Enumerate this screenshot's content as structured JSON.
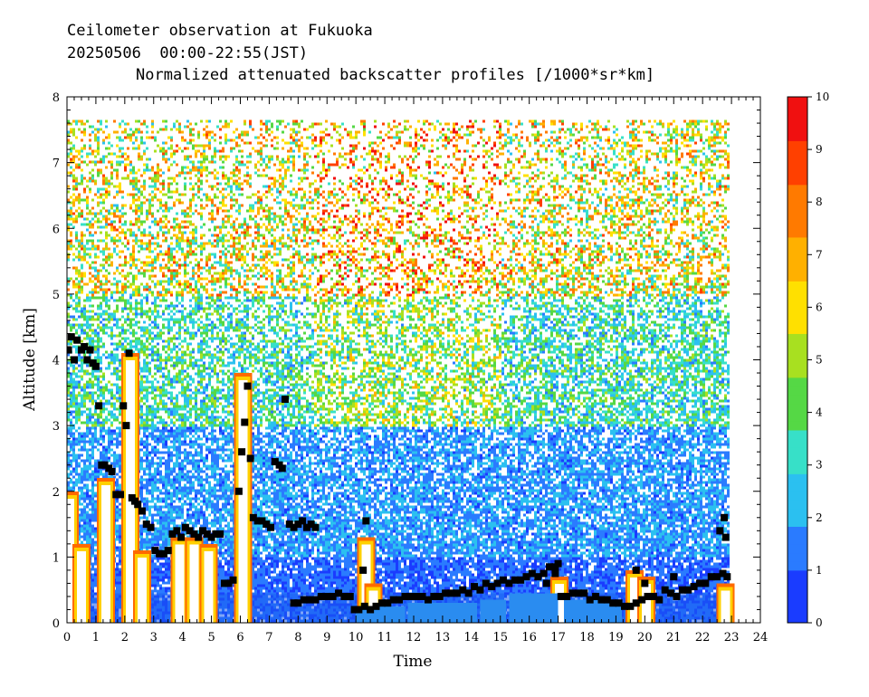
{
  "chart_data": {
    "type": "heatmap",
    "title_lines": [
      "Ceilometer observation at Fukuoka",
      "20250506  00:00-22:55(JST)"
    ],
    "subtitle": "Normalized attenuated backscatter profiles [/1000*sr*km]",
    "xlabel": "Time",
    "ylabel": "Altitude [km]",
    "xlim": [
      0,
      24
    ],
    "ylim": [
      0,
      8
    ],
    "x_ticks": [
      "0",
      "1",
      "2",
      "3",
      "4",
      "5",
      "6",
      "7",
      "8",
      "9",
      "10",
      "11",
      "12",
      "13",
      "14",
      "15",
      "16",
      "17",
      "18",
      "19",
      "20",
      "21",
      "22",
      "23",
      "24"
    ],
    "y_ticks": [
      "0",
      "1",
      "2",
      "3",
      "4",
      "5",
      "6",
      "7",
      "8"
    ],
    "colorbar": {
      "range": [
        0,
        10
      ],
      "ticks": [
        "0",
        "1",
        "2",
        "3",
        "4",
        "5",
        "6",
        "7",
        "8",
        "9",
        "10"
      ],
      "colors": [
        "#1a3cff",
        "#2a7bff",
        "#2bc0f0",
        "#37e0c8",
        "#55d845",
        "#a8e020",
        "#ffe000",
        "#ffb000",
        "#ff7a00",
        "#ff4000",
        "#f01010"
      ]
    },
    "data_top_altitude": 7.65,
    "data_end_time": 22.92,
    "series": [
      {
        "name": "cloud base / layer height",
        "x": [
          0.05,
          0.15,
          0.25,
          0.35,
          0.5,
          0.6,
          0.7,
          0.8,
          0.9,
          1.0,
          1.1,
          1.2,
          1.3,
          1.45,
          1.55,
          1.7,
          1.85,
          1.95,
          2.05,
          2.15,
          2.25,
          2.35,
          2.45,
          2.6,
          2.75,
          2.9,
          3.05,
          3.2,
          3.35,
          3.5,
          3.65,
          3.8,
          3.95,
          4.1,
          4.25,
          4.4,
          4.55,
          4.7,
          4.85,
          5.0,
          5.15,
          5.3,
          5.45,
          5.6,
          5.75,
          5.95,
          6.05,
          6.15,
          6.25,
          6.35,
          6.45,
          6.6,
          6.75,
          6.9,
          7.05,
          7.2,
          7.35,
          7.45,
          7.55,
          7.7,
          7.85,
          8.0,
          8.15,
          8.3,
          8.45,
          8.6,
          7.85,
          8.0,
          8.2,
          8.4,
          8.6,
          8.8,
          9.0,
          9.2,
          9.4,
          9.6,
          9.8,
          9.95,
          10.1,
          10.3,
          10.5,
          10.7,
          10.9,
          11.1,
          11.3,
          11.5,
          11.7,
          11.9,
          12.1,
          12.3,
          12.5,
          12.7,
          12.9,
          13.1,
          13.3,
          13.5,
          13.7,
          13.9,
          14.1,
          14.3,
          14.5,
          14.7,
          14.9,
          15.1,
          15.3,
          15.5,
          15.7,
          15.9,
          16.1,
          16.3,
          16.5,
          16.7,
          16.9,
          17.1,
          17.3,
          17.5,
          17.7,
          17.9,
          18.1,
          18.3,
          18.5,
          18.7,
          18.9,
          19.1,
          19.3,
          19.5,
          19.7,
          19.9,
          20.1,
          20.3,
          20.5,
          20.7,
          20.9,
          21.1,
          21.3,
          21.5,
          21.7,
          21.9,
          22.1,
          22.3,
          22.5,
          22.7,
          22.85,
          10.35,
          10.25,
          16.6,
          16.9,
          17.0,
          19.7,
          20.0,
          21.0,
          22.6,
          22.75,
          22.8
        ],
        "y": [
          4.15,
          4.35,
          4.0,
          4.3,
          4.15,
          4.2,
          4.0,
          4.15,
          3.95,
          3.9,
          3.3,
          2.4,
          2.4,
          2.35,
          2.3,
          1.95,
          1.95,
          3.3,
          3.0,
          4.1,
          1.9,
          1.85,
          1.8,
          1.7,
          1.5,
          1.45,
          1.1,
          1.05,
          1.05,
          1.1,
          1.35,
          1.4,
          1.3,
          1.45,
          1.4,
          1.35,
          1.3,
          1.4,
          1.35,
          1.3,
          1.35,
          1.35,
          0.6,
          0.6,
          0.65,
          2.0,
          2.6,
          3.05,
          3.6,
          2.5,
          1.6,
          1.55,
          1.55,
          1.5,
          1.45,
          2.45,
          2.4,
          2.35,
          3.4,
          1.5,
          1.45,
          1.5,
          1.55,
          1.45,
          1.5,
          1.45,
          0.3,
          0.3,
          0.35,
          0.35,
          0.35,
          0.4,
          0.4,
          0.4,
          0.45,
          0.4,
          0.4,
          0.2,
          0.2,
          0.25,
          0.2,
          0.25,
          0.3,
          0.3,
          0.35,
          0.35,
          0.4,
          0.4,
          0.4,
          0.4,
          0.35,
          0.4,
          0.4,
          0.45,
          0.45,
          0.45,
          0.5,
          0.45,
          0.55,
          0.5,
          0.6,
          0.55,
          0.6,
          0.65,
          0.6,
          0.65,
          0.65,
          0.7,
          0.75,
          0.7,
          0.75,
          0.85,
          0.85,
          0.4,
          0.4,
          0.45,
          0.45,
          0.45,
          0.35,
          0.4,
          0.35,
          0.35,
          0.3,
          0.3,
          0.25,
          0.25,
          0.3,
          0.35,
          0.4,
          0.4,
          0.35,
          0.5,
          0.45,
          0.4,
          0.5,
          0.5,
          0.55,
          0.6,
          0.6,
          0.7,
          0.7,
          0.75,
          0.7,
          1.55,
          0.8,
          0.6,
          0.75,
          0.9,
          0.8,
          0.6,
          0.7,
          1.4,
          1.6,
          1.3
        ]
      }
    ]
  }
}
